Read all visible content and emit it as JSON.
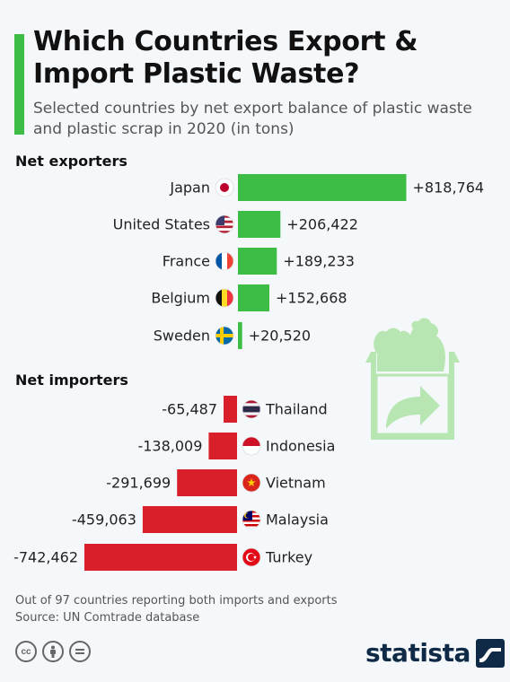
{
  "header": {
    "title": "Which Countries Export & Import Plastic Waste?",
    "subtitle": "Selected countries by net export balance of plastic waste and plastic scrap in 2020 (in tons)"
  },
  "sections": {
    "exporters": "Net exporters",
    "importers": "Net importers"
  },
  "chart_data": {
    "type": "bar",
    "orientation": "horizontal",
    "groups": [
      {
        "name": "Net exporters",
        "categories": [
          "Japan",
          "United States",
          "France",
          "Belgium",
          "Sweden"
        ],
        "values": [
          818764,
          206422,
          189233,
          152668,
          20520
        ],
        "labels": [
          "+818,764",
          "+206,422",
          "+189,233",
          "+152,668",
          "+20,520"
        ],
        "color": "#3dbd45"
      },
      {
        "name": "Net importers",
        "categories": [
          "Thailand",
          "Indonesia",
          "Vietnam",
          "Malaysia",
          "Turkey"
        ],
        "values": [
          -65487,
          -138009,
          -291699,
          -459063,
          -742462
        ],
        "labels": [
          "-65,487",
          "-138,009",
          "-291,699",
          "-459,063",
          "-742,462"
        ],
        "color": "#d9202a"
      }
    ]
  },
  "footer": {
    "note": "Out of 97 countries reporting both imports and exports",
    "source": "Source: UN Comtrade database",
    "brand": "statista"
  },
  "icons": {
    "license": [
      "cc-icon",
      "attribution-icon",
      "no-derivatives-icon"
    ],
    "illustration": "plastic-bag-box-export-icon"
  }
}
